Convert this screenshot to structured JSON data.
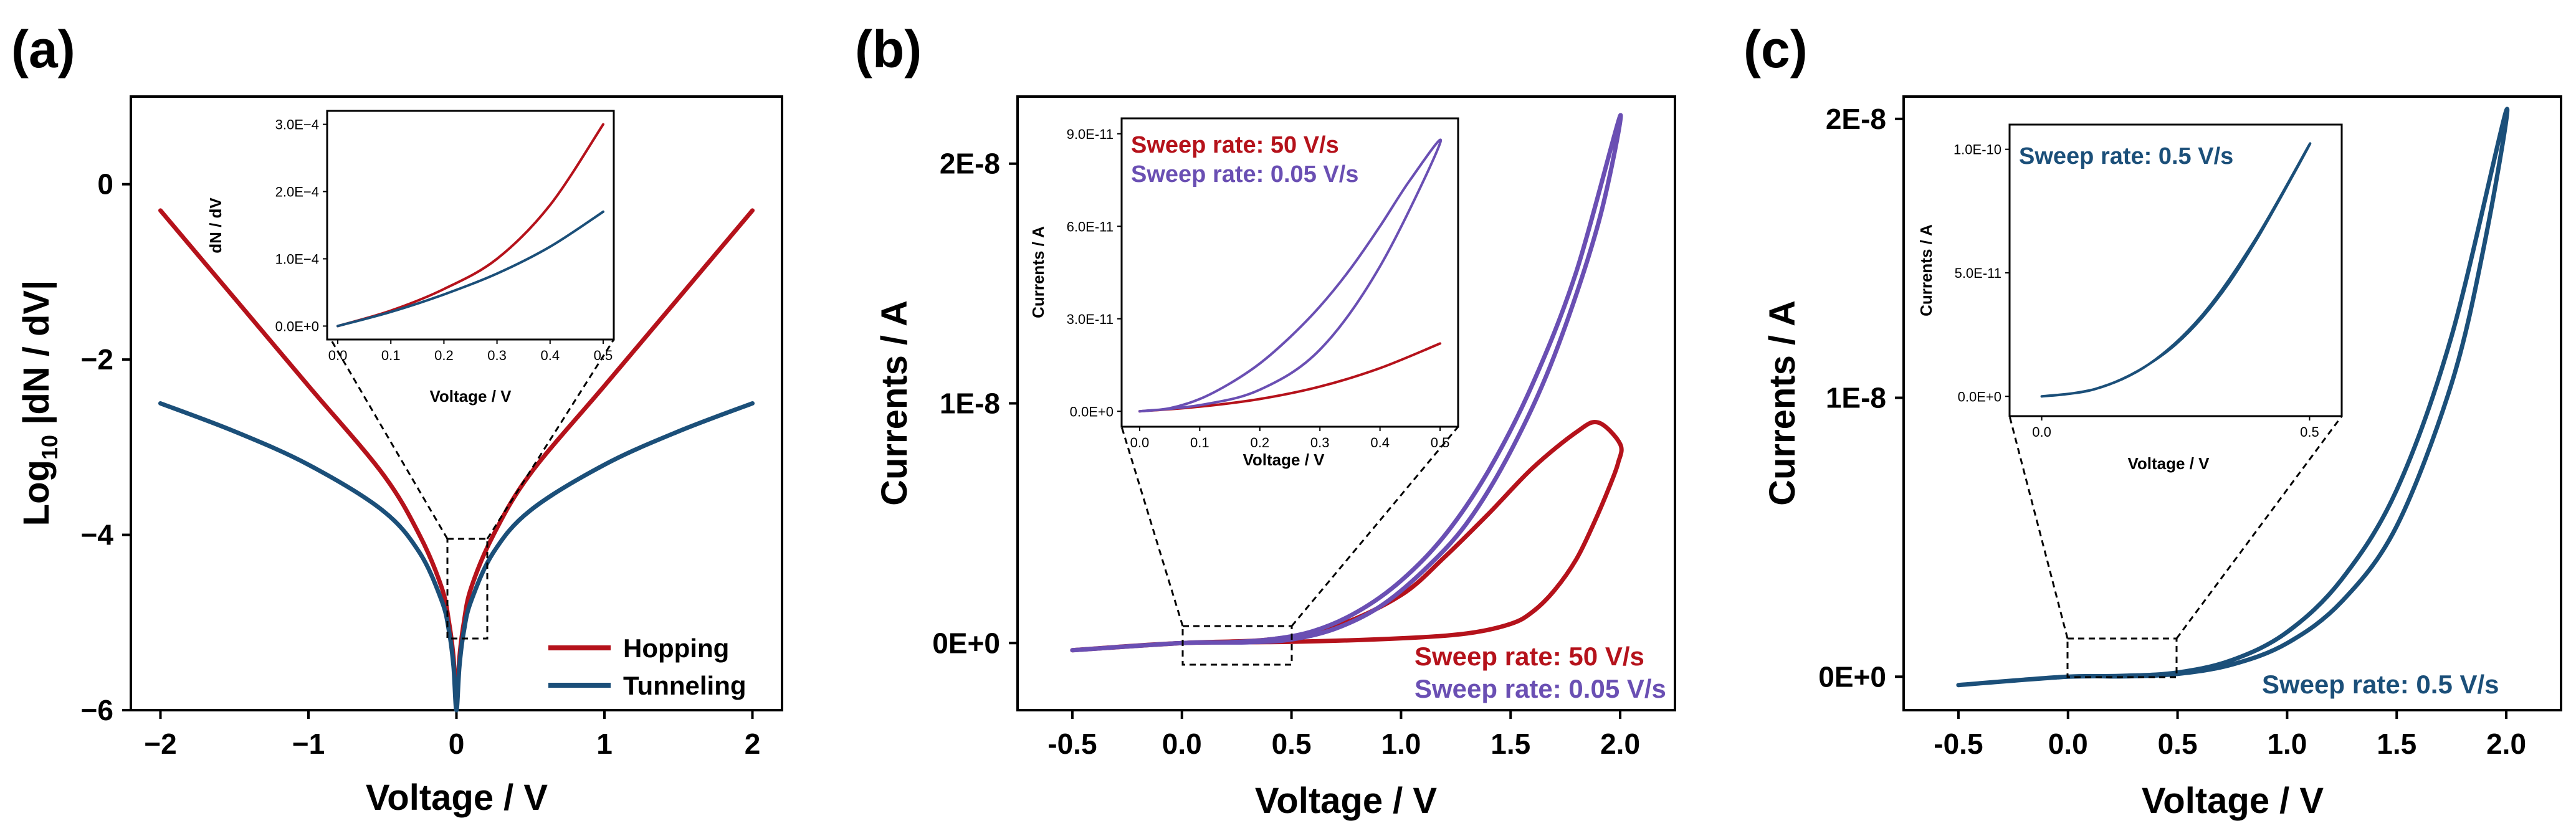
{
  "colors": {
    "red": "#b5121b",
    "blue": "#1b4f79",
    "purple": "#6a4fb3"
  },
  "panels": {
    "a": {
      "label": "(a)",
      "xlabel": "Voltage / V",
      "ylabel_main": "Log",
      "ylabel_sub": "10",
      "ylabel_rest": " |dN / dV|",
      "xticks": [
        "−2",
        "−1",
        "0",
        "1",
        "2"
      ],
      "yticks": [
        "0",
        "−2",
        "−4",
        "−6"
      ],
      "legend": [
        "Hopping",
        "Tunneling"
      ],
      "inset": {
        "xlabel": "Voltage / V",
        "ylabel": "dN / dV",
        "xticks": [
          "0.0",
          "0.1",
          "0.2",
          "0.3",
          "0.4",
          "0.5"
        ],
        "yticks": [
          "0.0E+0",
          "1.0E−4",
          "2.0E−4",
          "3.0E−4"
        ]
      }
    },
    "b": {
      "label": "(b)",
      "xlabel": "Voltage / V",
      "ylabel": "Currents / A",
      "xticks": [
        "-0.5",
        "0.0",
        "0.5",
        "1.0",
        "1.5",
        "2.0"
      ],
      "yticks": [
        "0E+0",
        "1E-8",
        "2E-8"
      ],
      "annotations": [
        "Sweep rate: 50 V/s",
        "Sweep rate: 0.05 V/s"
      ],
      "inset": {
        "xlabel": "Voltage / V",
        "ylabel": "Currents / A",
        "xticks": [
          "0.0",
          "0.1",
          "0.2",
          "0.3",
          "0.4",
          "0.5"
        ],
        "yticks": [
          "0.0E+0",
          "3.0E-11",
          "6.0E-11",
          "9.0E-11"
        ],
        "annotations": [
          "Sweep rate: 50 V/s",
          "Sweep rate: 0.05 V/s"
        ]
      }
    },
    "c": {
      "label": "(c)",
      "xlabel": "Voltage / V",
      "ylabel": "Currents / A",
      "xticks": [
        "-0.5",
        "0.0",
        "0.5",
        "1.0",
        "1.5",
        "2.0"
      ],
      "yticks": [
        "0E+0",
        "1E-8",
        "2E-8"
      ],
      "annotation": "Sweep rate: 0.5 V/s",
      "inset": {
        "xlabel": "Voltage / V",
        "ylabel": "Currents / A",
        "xticks": [
          "0.0",
          "0.5"
        ],
        "yticks": [
          "0.0E+0",
          "5.0E-11",
          "1.0E-10"
        ],
        "annotation": "Sweep rate: 0.5 V/s"
      }
    }
  },
  "chart_data": [
    {
      "type": "line",
      "panel": "a",
      "xlim": [
        -2.2,
        2.2
      ],
      "ylim": [
        -6,
        1
      ],
      "series": [
        {
          "name": "Hopping",
          "color": "red",
          "x": [
            -2,
            -1.5,
            -1,
            -0.5,
            -0.25,
            -0.1,
            -0.05,
            -0.02,
            0,
            0.02,
            0.05,
            0.1,
            0.25,
            0.5,
            1,
            1.5,
            2
          ],
          "y": [
            -0.3,
            -1.3,
            -2.3,
            -3.3,
            -4.0,
            -4.6,
            -5.0,
            -5.4,
            -5.9,
            -5.4,
            -5.0,
            -4.6,
            -4.0,
            -3.3,
            -2.3,
            -1.3,
            -0.3
          ]
        },
        {
          "name": "Tunneling",
          "color": "blue",
          "x": [
            -2,
            -1.5,
            -1,
            -0.5,
            -0.25,
            -0.1,
            -0.05,
            -0.02,
            0,
            0.02,
            0.05,
            0.1,
            0.25,
            0.5,
            1,
            1.5,
            2
          ],
          "y": [
            -2.5,
            -2.82,
            -3.2,
            -3.72,
            -4.2,
            -4.75,
            -5.1,
            -5.5,
            -6.0,
            -5.5,
            -5.1,
            -4.75,
            -4.2,
            -3.72,
            -3.2,
            -2.82,
            -2.5
          ]
        }
      ]
    },
    {
      "type": "line",
      "panel": "a-inset",
      "xlim": [
        -0.02,
        0.52
      ],
      "ylim": [
        -2e-05,
        0.00032
      ],
      "series": [
        {
          "name": "Hopping",
          "color": "red",
          "x": [
            0,
            0.1,
            0.2,
            0.3,
            0.4,
            0.5
          ],
          "y": [
            0,
            2.3e-05,
            5.5e-05,
            0.0001,
            0.00018,
            0.0003
          ]
        },
        {
          "name": "Tunneling",
          "color": "blue",
          "x": [
            0,
            0.1,
            0.2,
            0.3,
            0.4,
            0.5
          ],
          "y": [
            0,
            2.1e-05,
            4.7e-05,
            7.8e-05,
            0.000118,
            0.00017
          ]
        }
      ]
    },
    {
      "type": "line",
      "panel": "b",
      "xlim": [
        -0.75,
        2.25
      ],
      "ylim": [
        -2.8e-09,
        2.28e-08
      ],
      "series": [
        {
          "name": "Sweep rate: 50 V/s",
          "color": "red",
          "x": [
            -0.5,
            0,
            0.5,
            1.0,
            1.3,
            1.5,
            1.6,
            1.7,
            1.8,
            1.88,
            1.95,
            1.99,
            2.0,
            1.9,
            1.8,
            1.6,
            1.4,
            1.2,
            1.0,
            0.7,
            0.4,
            0.0,
            -0.5
          ],
          "y": [
            -3e-10,
            0,
            5e-11,
            2e-10,
            4e-10,
            8e-10,
            1.3e-09,
            2.2e-09,
            3.5e-09,
            5e-09,
            6.5e-09,
            7.5e-09,
            8.3e-09,
            9.2e-09,
            8.8e-09,
            7.3e-09,
            5.4e-09,
            3.6e-09,
            2e-09,
            7e-10,
            1.5e-10,
            0,
            -3e-10
          ]
        },
        {
          "name": "Sweep rate: 0.05 V/s",
          "color": "purple",
          "x": [
            -0.5,
            0,
            0.3,
            0.5,
            0.7,
            0.9,
            1.1,
            1.3,
            1.5,
            1.7,
            1.9,
            2.0,
            1.8,
            1.6,
            1.4,
            1.2,
            1.0,
            0.8,
            0.6,
            0.4,
            0.2,
            0.0,
            -0.5
          ],
          "y": [
            -3e-10,
            0,
            3e-11,
            1.5e-10,
            6e-10,
            1.5e-09,
            3e-09,
            5e-09,
            8e-09,
            1.2e-08,
            1.75e-08,
            2.2e-08,
            1.55e-08,
            1.08e-08,
            7.2e-09,
            4.5e-09,
            2.6e-09,
            1.3e-09,
            5e-10,
            1.5e-10,
            3e-11,
            0,
            -3e-10
          ]
        }
      ]
    },
    {
      "type": "line",
      "panel": "b-inset",
      "xlim": [
        -0.03,
        0.53
      ],
      "ylim": [
        -5e-12,
        9.5e-11
      ],
      "series": [
        {
          "name": "Sweep rate: 50 V/s",
          "color": "red",
          "x": [
            0,
            0.1,
            0.2,
            0.3,
            0.4,
            0.5
          ],
          "y": [
            0,
            1.5e-12,
            4e-12,
            8e-12,
            1.4e-11,
            2.2e-11
          ]
        },
        {
          "name": "Sweep rate: 0.05 V/s",
          "color": "purple",
          "x": [
            0,
            0.1,
            0.2,
            0.3,
            0.4,
            0.5,
            0.45,
            0.4,
            0.35,
            0.3,
            0.25,
            0.2,
            0.15,
            0.1,
            0.05,
            0
          ],
          "y": [
            0,
            2e-12,
            7e-12,
            2e-11,
            4.7e-11,
            8.7e-11,
            7.5e-11,
            6e-11,
            4.6e-11,
            3.4e-11,
            2.4e-11,
            1.55e-11,
            9e-12,
            4e-12,
            1e-12,
            0
          ]
        }
      ]
    },
    {
      "type": "line",
      "panel": "c",
      "xlim": [
        -0.75,
        2.25
      ],
      "ylim": [
        -1.2e-09,
        2.08e-08
      ],
      "series": [
        {
          "name": "Sweep rate: 0.5 V/s",
          "color": "blue",
          "x": [
            -0.5,
            -0.25,
            0,
            0.25,
            0.5,
            0.75,
            1.0,
            1.25,
            1.5,
            1.75,
            2.0,
            1.9,
            1.75,
            1.5,
            1.25,
            1.0,
            0.75,
            0.5,
            0.25,
            0,
            -0.5
          ],
          "y": [
            -3e-10,
            -1.4e-10,
            0,
            3e-11,
            1.5e-10,
            6e-10,
            1.6e-09,
            3.5e-09,
            6.7e-09,
            1.22e-08,
            2.03e-08,
            1.55e-08,
            1.05e-08,
            5.4e-09,
            2.7e-09,
            1.2e-09,
            4.4e-10,
            1e-10,
            1e-11,
            0,
            -3e-10
          ]
        }
      ]
    },
    {
      "type": "line",
      "panel": "c-inset",
      "xlim": [
        -0.06,
        0.56
      ],
      "ylim": [
        -8e-12,
        1.1e-10
      ],
      "series": [
        {
          "name": "Sweep rate: 0.5 V/s",
          "color": "blue",
          "x": [
            0,
            0.1,
            0.2,
            0.3,
            0.4,
            0.5,
            0.45,
            0.4,
            0.35,
            0.3,
            0.25,
            0.2,
            0.15,
            0.1,
            0.05,
            0
          ],
          "y": [
            0,
            3e-12,
            1.3e-11,
            3.3e-11,
            6.4e-11,
            1.02e-10,
            8.2e-11,
            6.3e-11,
            4.6e-11,
            3.2e-11,
            2.1e-11,
            1.3e-11,
            7e-12,
            3e-12,
            1e-12,
            0
          ]
        }
      ]
    }
  ]
}
